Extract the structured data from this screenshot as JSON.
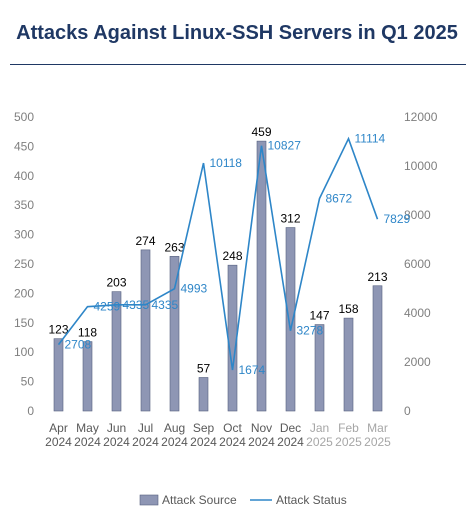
{
  "chart_data": {
    "type": "bar",
    "title": "Attacks Against Linux-SSH Servers in Q1 2025",
    "categories": [
      [
        "Apr",
        "2024"
      ],
      [
        "May",
        "2024"
      ],
      [
        "Jun",
        "2024"
      ],
      [
        "Jul",
        "2024"
      ],
      [
        "Aug",
        "2024"
      ],
      [
        "Sep",
        "2024"
      ],
      [
        "Oct",
        "2024"
      ],
      [
        "Nov",
        "2024"
      ],
      [
        "Dec",
        "2024"
      ],
      [
        "Jan",
        "2025"
      ],
      [
        "Feb",
        "2025"
      ],
      [
        "Mar",
        "2025"
      ]
    ],
    "highlight_from_index": 9,
    "series": [
      {
        "name": "Attack Source",
        "type": "bar",
        "axis": "left",
        "color": "#8e96b4",
        "values": [
          123,
          118,
          203,
          274,
          263,
          57,
          248,
          459,
          312,
          147,
          158,
          213
        ]
      },
      {
        "name": "Attack Status",
        "type": "line",
        "axis": "right",
        "color": "#2e86c8",
        "values": [
          2708,
          4259,
          4335,
          4335,
          4993,
          10118,
          1674,
          10827,
          3278,
          8672,
          11114,
          7829
        ]
      }
    ],
    "y_left": {
      "min": 0,
      "max": 500,
      "step": 50
    },
    "y_right": {
      "min": 0,
      "max": 12000,
      "step": 2000
    },
    "grid": false,
    "legend_position": "bottom"
  }
}
